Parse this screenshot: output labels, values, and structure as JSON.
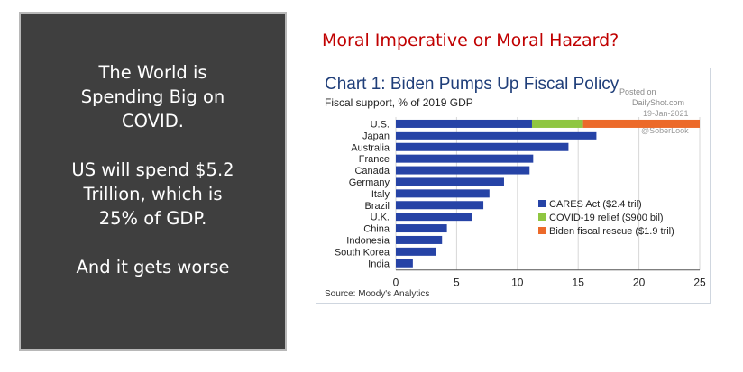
{
  "left_panel": {
    "lines": [
      "The World is",
      "Spending Big on",
      "COVID.",
      "",
      "US will spend $5.2",
      "Trillion, which is",
      "25% of GDP.",
      "",
      "And it gets worse"
    ]
  },
  "slide_title": "Moral Imperative or Moral Hazard?",
  "chart_data": {
    "type": "bar",
    "orientation": "horizontal",
    "stacked": true,
    "title": "Chart 1: Biden Pumps Up Fiscal Policy",
    "subtitle": "Fiscal support, % of 2019 GDP",
    "source": "Source: Moody's Analytics",
    "watermark": [
      "Posted on",
      "DailyShot.com",
      "19-Jan-2021",
      "@SoberLook"
    ],
    "categories": [
      "U.S.",
      "Japan",
      "Australia",
      "France",
      "Canada",
      "Germany",
      "Italy",
      "Brazil",
      "U.K.",
      "China",
      "Indonesia",
      "South Korea",
      "India"
    ],
    "series": [
      {
        "name": "CARES Act ($2.4 tril)",
        "color": "#2643a6",
        "values": [
          11.2,
          16.5,
          14.2,
          11.3,
          11.0,
          8.9,
          7.7,
          7.2,
          6.3,
          4.2,
          3.8,
          3.3,
          1.4
        ]
      },
      {
        "name": "COVID-19 relief ($900 bil)",
        "color": "#8fc641",
        "values": [
          4.2,
          0,
          0,
          0,
          0,
          0,
          0,
          0,
          0,
          0,
          0,
          0,
          0
        ]
      },
      {
        "name": "Biden fiscal rescue ($1.9 tril)",
        "color": "#ec6a2a",
        "values": [
          9.6,
          0,
          0,
          0,
          0,
          0,
          0,
          0,
          0,
          0,
          0,
          0,
          0
        ]
      }
    ],
    "xlim": [
      0,
      25
    ],
    "xticks": [
      0,
      5,
      10,
      15,
      20,
      25
    ],
    "grid": "vertical",
    "legend": "bottom-right"
  }
}
